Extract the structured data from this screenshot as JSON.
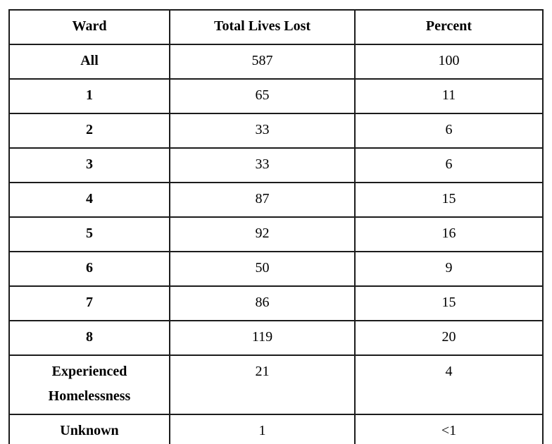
{
  "page": {
    "background_color": "#ffffff",
    "text_color": "#000000",
    "border_color": "#1c1c1c"
  },
  "table": {
    "headers": {
      "ward": "Ward",
      "total": "Total Lives Lost",
      "percent": "Percent"
    },
    "rows": [
      {
        "ward": "All",
        "total": "587",
        "percent": "100"
      },
      {
        "ward": "1",
        "total": "65",
        "percent": "11"
      },
      {
        "ward": "2",
        "total": "33",
        "percent": "6"
      },
      {
        "ward": "3",
        "total": "33",
        "percent": "6"
      },
      {
        "ward": "4",
        "total": "87",
        "percent": "15"
      },
      {
        "ward": "5",
        "total": "92",
        "percent": "16"
      },
      {
        "ward": "6",
        "total": "50",
        "percent": "9"
      },
      {
        "ward": "7",
        "total": "86",
        "percent": "15"
      },
      {
        "ward": "8",
        "total": "119",
        "percent": "20"
      },
      {
        "ward": "Experienced Homelessness",
        "total": "21",
        "percent": "4"
      },
      {
        "ward": "Unknown",
        "total": "1",
        "percent": "<1"
      }
    ]
  }
}
